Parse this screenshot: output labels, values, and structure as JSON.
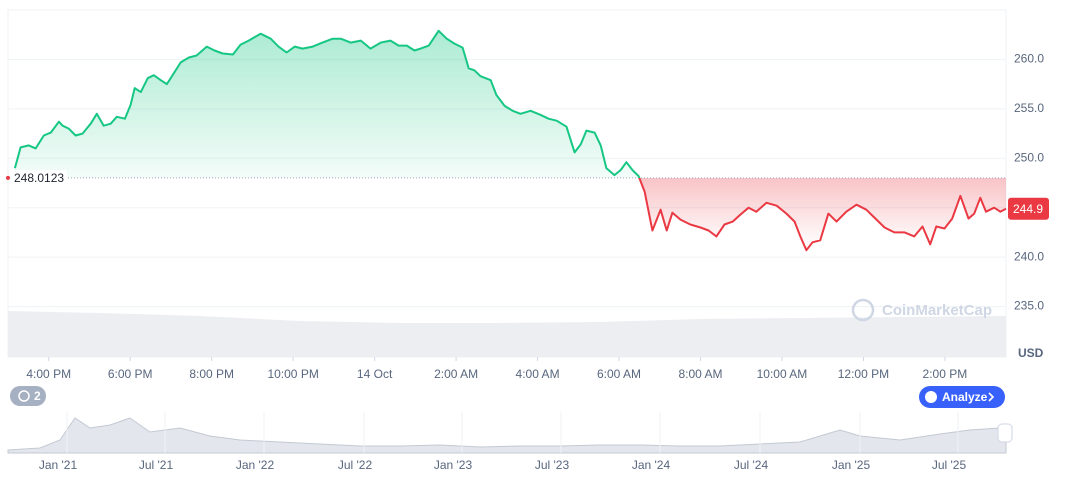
{
  "chart_data": {
    "type": "line",
    "x": [
      -0.83,
      -0.69,
      -0.49,
      -0.32,
      -0.12,
      0.05,
      0.25,
      0.34,
      0.49,
      0.66,
      0.83,
      1.03,
      1.18,
      1.35,
      1.52,
      1.67,
      1.87,
      2.01,
      2.11,
      2.26,
      2.43,
      2.58,
      2.75,
      2.9,
      3.04,
      3.24,
      3.44,
      3.63,
      3.88,
      4.07,
      4.27,
      4.52,
      4.71,
      4.91,
      5.2,
      5.45,
      5.64,
      5.84,
      6.04,
      6.23,
      6.48,
      6.72,
      6.97,
      7.17,
      7.41,
      7.66,
      7.9,
      8.15,
      8.39,
      8.59,
      8.79,
      8.98,
      9.13,
      9.33,
      9.57,
      9.77,
      9.96,
      10.16,
      10.31,
      10.45,
      10.6,
      10.85,
      10.99,
      11.19,
      11.39,
      11.58,
      11.83,
      12.07,
      12.27,
      12.47,
      12.71,
      12.91,
      13.06,
      13.2,
      13.4,
      13.55,
      13.69,
      13.89,
      14.04,
      14.18,
      14.33,
      14.48,
      14.63,
      14.82,
      15.02,
      15.17,
      15.31,
      15.51,
      15.75,
      16.0,
      16.2,
      16.39,
      16.59,
      16.79,
      16.98,
      17.18,
      17.37,
      17.62,
      17.87,
      18.11,
      18.31,
      18.45,
      18.6,
      18.75,
      18.94,
      19.14,
      19.34,
      19.58,
      19.83,
      20.07,
      20.27,
      20.52,
      20.76,
      21.01,
      21.25,
      21.45,
      21.64,
      21.79,
      21.99,
      22.18,
      22.38,
      22.58,
      22.72,
      22.87,
      23.01,
      23.21,
      23.36,
      23.5
    ],
    "series": [
      {
        "values": [
          249.0,
          251.1,
          251.3,
          251.0,
          252.3,
          252.6,
          253.7,
          253.3,
          253.0,
          252.3,
          252.5,
          253.5,
          254.5,
          253.3,
          253.5,
          254.2,
          254.0,
          255.4,
          257.1,
          256.7,
          258.1,
          258.4,
          257.9,
          257.5,
          258.4,
          259.7,
          260.2,
          260.4,
          261.3,
          260.9,
          260.6,
          260.5,
          261.5,
          261.9,
          262.6,
          262.1,
          261.3,
          260.7,
          261.3,
          261.1,
          261.3,
          261.7,
          262.1,
          262.1,
          261.7,
          261.9,
          261.1,
          261.7,
          261.9,
          261.4,
          261.4,
          260.9,
          261.1,
          261.4,
          262.9,
          262.1,
          261.6,
          261.2,
          259.1,
          258.9,
          258.3,
          257.9,
          256.4,
          255.3,
          254.8,
          254.5,
          254.8,
          254.4,
          254.0,
          253.8,
          253.2,
          250.6,
          251.4,
          252.8,
          252.6,
          251.3,
          249.0,
          248.3,
          248.8,
          249.6,
          248.8,
          248.2,
          246.6,
          242.7,
          244.8,
          242.7,
          244.5,
          243.8,
          243.3,
          243.0,
          242.7,
          242.1,
          243.3,
          243.6,
          244.3,
          245.0,
          244.6,
          245.5,
          245.2,
          244.4,
          243.6,
          242.1,
          240.7,
          241.5,
          241.7,
          244.4,
          243.6,
          244.6,
          245.3,
          244.8,
          244.0,
          243.0,
          242.5,
          242.5,
          242.1,
          243.1,
          241.3,
          243.1,
          242.9,
          243.9,
          246.2,
          243.9,
          244.4,
          246.0,
          244.6,
          245.0,
          244.6,
          244.9
        ]
      }
    ],
    "color_up": "#16c784",
    "color_down": "#ea3943",
    "baseline": 248.0123,
    "current_price": 244.9,
    "y_unit": "USD",
    "xlim": [
      -1,
      23.5
    ],
    "ylim": [
      230,
      265
    ],
    "xticks": [
      {
        "value": 0,
        "label": "4:00 PM"
      },
      {
        "value": 2,
        "label": "6:00 PM"
      },
      {
        "value": 4,
        "label": "8:00 PM"
      },
      {
        "value": 6,
        "label": "10:00 PM"
      },
      {
        "value": 8,
        "label": "14 Oct"
      },
      {
        "value": 10,
        "label": "2:00 AM"
      },
      {
        "value": 12,
        "label": "4:00 AM"
      },
      {
        "value": 14,
        "label": "6:00 AM"
      },
      {
        "value": 16,
        "label": "8:00 AM"
      },
      {
        "value": 18,
        "label": "10:00 AM"
      },
      {
        "value": 20,
        "label": "12:00 PM"
      },
      {
        "value": 22,
        "label": "2:00 PM"
      }
    ],
    "yticks": [
      {
        "value": 235,
        "label": "235.0"
      },
      {
        "value": 240,
        "label": "240.0"
      },
      {
        "value": 245,
        "label": ""
      },
      {
        "value": 250,
        "label": "250.0"
      },
      {
        "value": 255,
        "label": "255.0"
      },
      {
        "value": 260,
        "label": "260.0"
      }
    ],
    "grid": true
  },
  "watermark": "CoinMarketCap",
  "analyze_button": "Analyze",
  "history_count": 2,
  "navigator_labels": [
    "Jan '21",
    "Jul '21",
    "Jan '22",
    "Jul '22",
    "Jan '23",
    "Jul '23",
    "Jan '24",
    "Jul '24",
    "Jan '25",
    "Jul '25"
  ]
}
